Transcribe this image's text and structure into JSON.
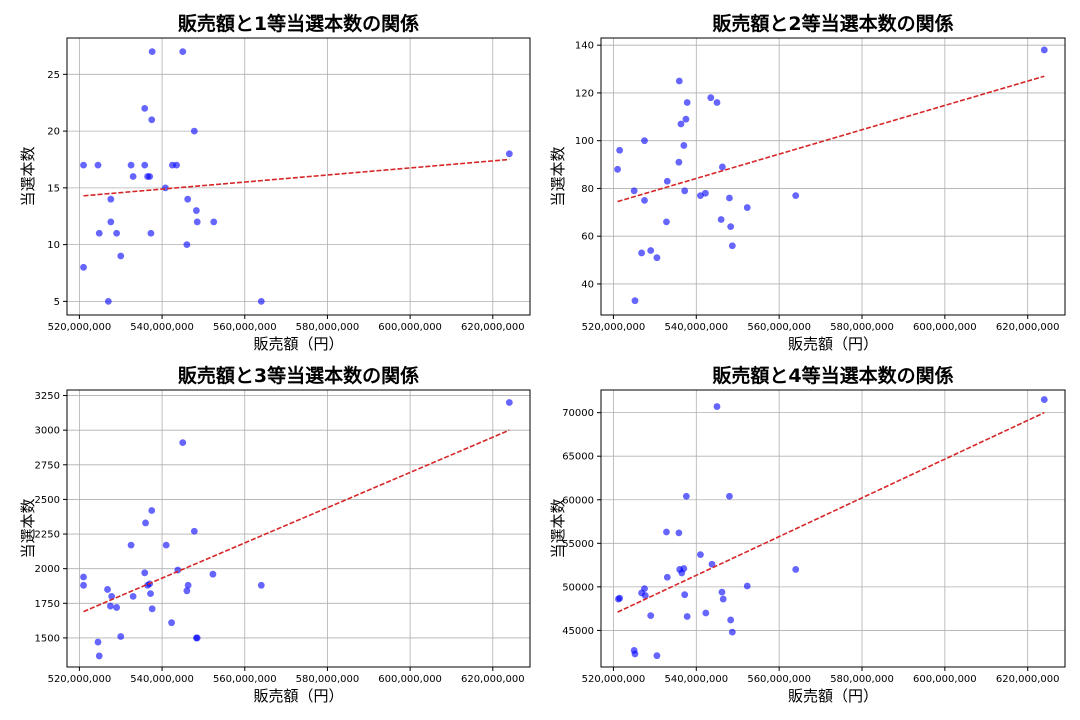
{
  "colors": {
    "points": "#0000ff",
    "trend": "#d62728",
    "grid": "#b0b0b0"
  },
  "chart_data": [
    {
      "type": "scatter",
      "title": "販売額と1等当選本数の関係",
      "xlabel": "販売額（円）",
      "ylabel": "当選本数",
      "xlim": [
        517000000,
        629000000
      ],
      "ylim": [
        3.8,
        28.2
      ],
      "xticks": [
        520000000,
        540000000,
        560000000,
        580000000,
        600000000,
        620000000
      ],
      "xtick_labels": [
        "520,000,000",
        "540,000,000",
        "560,000,000",
        "580,000,000",
        "600,000,000",
        "620,000,000"
      ],
      "yticks": [
        5,
        10,
        15,
        20,
        25
      ],
      "ytick_labels": [
        "5",
        "10",
        "15",
        "20",
        "25"
      ],
      "grid": true,
      "trend_line": {
        "style": "dashed",
        "x": [
          521000000,
          624000000
        ],
        "y": [
          14.3,
          17.5
        ]
      },
      "x": [
        521000000,
        521000000,
        524500000,
        524800000,
        527000000,
        527600000,
        527600000,
        529000000,
        530000000,
        532500000,
        533000000,
        535800000,
        535800000,
        536500000,
        537000000,
        537300000,
        537500000,
        537600000,
        540800000,
        542500000,
        543500000,
        545000000,
        546000000,
        546200000,
        547800000,
        548300000,
        548500000,
        552500000,
        564000000,
        624000000
      ],
      "y": [
        17,
        8,
        17,
        11,
        5,
        14,
        12,
        11,
        9,
        17,
        16,
        17,
        22,
        16,
        16,
        11,
        21,
        27,
        15,
        17,
        17,
        27,
        10,
        14,
        20,
        13,
        12,
        12,
        5,
        18
      ]
    },
    {
      "type": "scatter",
      "title": "販売額と2等当選本数の関係",
      "xlabel": "販売額（円）",
      "ylabel": "当選本数",
      "xlim": [
        517000000,
        629000000
      ],
      "ylim": [
        27,
        143
      ],
      "xticks": [
        520000000,
        540000000,
        560000000,
        580000000,
        600000000,
        620000000
      ],
      "xtick_labels": [
        "520,000,000",
        "540,000,000",
        "560,000,000",
        "580,000,000",
        "600,000,000",
        "620,000,000"
      ],
      "yticks": [
        40,
        60,
        80,
        100,
        120,
        140
      ],
      "ytick_labels": [
        "40",
        "60",
        "80",
        "100",
        "120",
        "140"
      ],
      "grid": true,
      "trend_line": {
        "style": "dashed",
        "x": [
          521000000,
          624000000
        ],
        "y": [
          74.5,
          127
        ]
      },
      "x": [
        521000000,
        521500000,
        525000000,
        525200000,
        526800000,
        527500000,
        527500000,
        529000000,
        530500000,
        532800000,
        533000000,
        535800000,
        535900000,
        536300000,
        537000000,
        537200000,
        537500000,
        537800000,
        541000000,
        542200000,
        543500000,
        545000000,
        546000000,
        546300000,
        548000000,
        548300000,
        548700000,
        552300000,
        564000000,
        624000000
      ],
      "y": [
        88,
        96,
        79,
        33,
        53,
        100,
        75,
        54,
        51,
        66,
        83,
        91,
        125,
        107,
        98,
        79,
        109,
        116,
        77,
        78,
        118,
        116,
        67,
        89,
        76,
        64,
        56,
        72,
        77,
        138
      ]
    },
    {
      "type": "scatter",
      "title": "販売額と3等当選本数の関係",
      "xlabel": "販売額（円）",
      "ylabel": "当選本数",
      "xlim": [
        517000000,
        629000000
      ],
      "ylim": [
        1290,
        3290
      ],
      "xticks": [
        520000000,
        540000000,
        560000000,
        580000000,
        600000000,
        620000000
      ],
      "xtick_labels": [
        "520,000,000",
        "540,000,000",
        "560,000,000",
        "580,000,000",
        "600,000,000",
        "620,000,000"
      ],
      "yticks": [
        1500,
        1750,
        2000,
        2250,
        2500,
        2750,
        3000,
        3250
      ],
      "ytick_labels": [
        "1500",
        "1750",
        "2000",
        "2250",
        "2500",
        "2750",
        "3000",
        "3250"
      ],
      "grid": true,
      "trend_line": {
        "style": "dashed",
        "x": [
          521000000,
          624000000
        ],
        "y": [
          1690,
          3000
        ]
      },
      "x": [
        521000000,
        521000000,
        524500000,
        524800000,
        526800000,
        527500000,
        527800000,
        529000000,
        530000000,
        532500000,
        533000000,
        535800000,
        536000000,
        536500000,
        537000000,
        537200000,
        537500000,
        537600000,
        541000000,
        542300000,
        543800000,
        545000000,
        546000000,
        546300000,
        547800000,
        548300000,
        548500000,
        552300000,
        564000000,
        624000000
      ],
      "y": [
        1940,
        1880,
        1470,
        1370,
        1850,
        1730,
        1800,
        1720,
        1510,
        2170,
        1800,
        1970,
        2330,
        1880,
        1890,
        1820,
        2420,
        1710,
        2170,
        1610,
        1990,
        2910,
        1840,
        1880,
        2270,
        1500,
        1500,
        1960,
        1880,
        3200
      ]
    },
    {
      "type": "scatter",
      "title": "販売額と4等当選本数の関係",
      "xlabel": "販売額（円）",
      "ylabel": "当選本数",
      "xlim": [
        517000000,
        629000000
      ],
      "ylim": [
        40800,
        72600
      ],
      "xticks": [
        520000000,
        540000000,
        560000000,
        580000000,
        600000000,
        620000000
      ],
      "xtick_labels": [
        "520,000,000",
        "540,000,000",
        "560,000,000",
        "580,000,000",
        "600,000,000",
        "620,000,000"
      ],
      "yticks": [
        45000,
        50000,
        55000,
        60000,
        65000,
        70000
      ],
      "ytick_labels": [
        "45000",
        "50000",
        "55000",
        "60000",
        "65000",
        "70000"
      ],
      "grid": true,
      "trend_line": {
        "style": "dashed",
        "x": [
          521000000,
          624000000
        ],
        "y": [
          47100,
          70000
        ]
      },
      "x": [
        521200000,
        521500000,
        525000000,
        525200000,
        526800000,
        527500000,
        527700000,
        529000000,
        530500000,
        532800000,
        533000000,
        535800000,
        536000000,
        536500000,
        537000000,
        537200000,
        537600000,
        537800000,
        541000000,
        542300000,
        543800000,
        545000000,
        546200000,
        546500000,
        548000000,
        548300000,
        548700000,
        552300000,
        564000000,
        624000000
      ],
      "y": [
        48600,
        48700,
        42700,
        42300,
        49300,
        49800,
        49000,
        46700,
        42100,
        56300,
        51100,
        56200,
        52000,
        51600,
        52100,
        49100,
        60400,
        46600,
        53700,
        47000,
        52600,
        70700,
        49400,
        48600,
        60400,
        46200,
        44800,
        50100,
        52000,
        71500
      ]
    }
  ]
}
